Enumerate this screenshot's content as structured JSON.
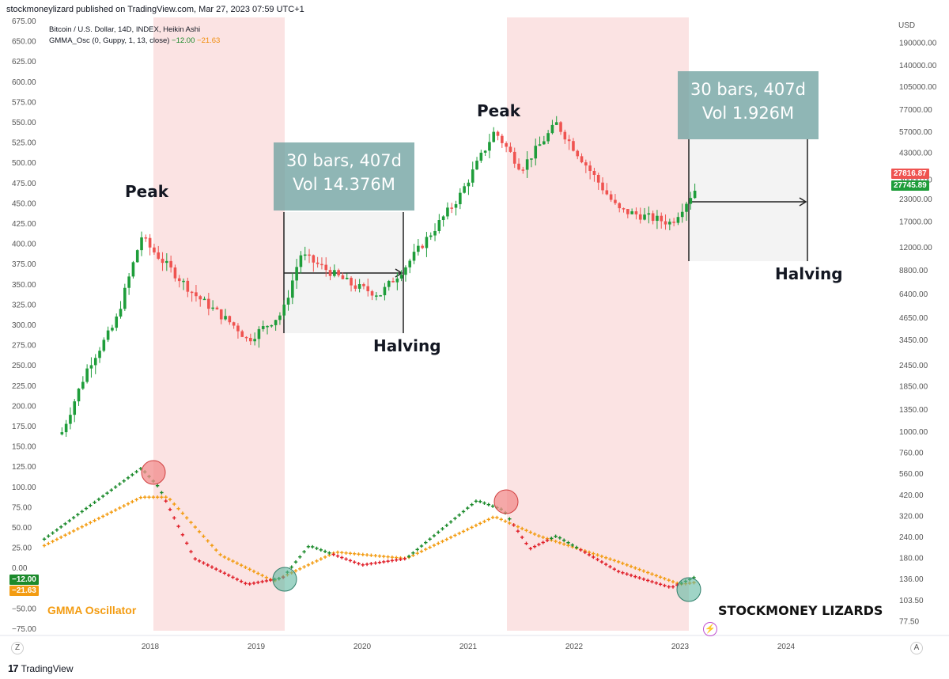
{
  "header": {
    "published": "stockmoneylizard published on TradingView.com, Mar 27, 2023 07:59 UTC+1",
    "symbol_line": "Bitcoin / U.S. Dollar, 14D, INDEX, Heikin Ashi",
    "indicator_name": "GMMA_Osc (0, Guppy, 1, 13, close)",
    "indicator_val1": "−12.00",
    "indicator_val2": "−21.63"
  },
  "annotations": {
    "peak1": "Peak",
    "peak2": "Peak",
    "halving1": "Halving",
    "halving2": "Halving",
    "measure1_line1": "30 bars, 407d",
    "measure1_line2": "Vol 14.376M",
    "measure2_line1": "30 bars, 407d",
    "measure2_line2": "Vol 1.926M",
    "oscillator_title": "GMMA Oscillator",
    "brand": "STOCKMONEY LIZARDS"
  },
  "price_tags": {
    "red": "27816.87",
    "green": "27745.89",
    "osc_green": "−12.00",
    "osc_orange": "−21.63"
  },
  "corner_labels": {
    "currency": "USD",
    "bottom_left": "Z",
    "bottom_right": "A"
  },
  "footer": {
    "brand": "TradingView"
  },
  "colors": {
    "up": "#26a69a",
    "up_dark": "#1e9d3a",
    "down": "#ef5350",
    "osc_green": "#1b8a2b",
    "osc_red": "#e0202a",
    "osc_orange": "#f39c12",
    "shade_red": "#fbe3e3",
    "shade_gray": "#f2f2f2",
    "circle_red": "#f28b8b",
    "circle_teal": "#5fb8a0"
  },
  "chart_data": [
    {
      "type": "candlestick",
      "title": "Bitcoin / U.S. Dollar, 14D, INDEX, Heikin Ashi",
      "x_ticks": [
        "2018",
        "2019",
        "2020",
        "2021",
        "2022",
        "2023",
        "2024"
      ],
      "y_right_label": "USD",
      "y_right_ticks": [
        "190000.00",
        "140000.00",
        "105000.00",
        "77000.00",
        "57000.00",
        "43000.00",
        "30000.00",
        "23000.00",
        "17000.00",
        "12000.00",
        "8800.00",
        "6400.00",
        "4650.00",
        "3450.00",
        "2450.00",
        "1850.00",
        "1350.00",
        "1000.00",
        "760.00",
        "560.00",
        "420.00",
        "320.00",
        "240.00",
        "180.00",
        "136.00",
        "103.50",
        "77.50"
      ],
      "y_left_ticks": [
        "675.00",
        "650.00",
        "625.00",
        "600.00",
        "575.00",
        "550.00",
        "525.00",
        "500.00",
        "475.00",
        "450.00",
        "425.00",
        "400.00",
        "375.00",
        "350.00",
        "325.00",
        "300.00",
        "275.00",
        "250.00",
        "225.00",
        "200.00",
        "175.00",
        "150.00",
        "125.00",
        "100.00",
        "75.00",
        "50.00",
        "25.00",
        "0.00",
        "−25.00",
        "−50.00",
        "−75.00"
      ],
      "log_scale": true,
      "approx_closes": [
        {
          "x": "2017-03",
          "y": 1000
        },
        {
          "x": "2017-06",
          "y": 2450
        },
        {
          "x": "2017-09",
          "y": 4300
        },
        {
          "x": "2017-12",
          "y": 14000
        },
        {
          "x": "2018-01",
          "y": 12000
        },
        {
          "x": "2018-06",
          "y": 6400
        },
        {
          "x": "2018-11",
          "y": 4000
        },
        {
          "x": "2018-12",
          "y": 3450
        },
        {
          "x": "2019-04",
          "y": 5000
        },
        {
          "x": "2019-06",
          "y": 11000
        },
        {
          "x": "2019-12",
          "y": 7200
        },
        {
          "x": "2020-03",
          "y": 6400
        },
        {
          "x": "2020-06",
          "y": 9500
        },
        {
          "x": "2020-12",
          "y": 24000
        },
        {
          "x": "2021-04",
          "y": 58000
        },
        {
          "x": "2021-07",
          "y": 35000
        },
        {
          "x": "2021-11",
          "y": 64000
        },
        {
          "x": "2022-06",
          "y": 20000
        },
        {
          "x": "2022-12",
          "y": 16800
        },
        {
          "x": "2023-03",
          "y": 27745.89
        }
      ]
    },
    {
      "type": "line",
      "title": "GMMA_Osc (0, Guppy, 1, 13, close)",
      "series": [
        {
          "name": "",
          "approx_values": [
            {
              "x": "2017-01",
              "y": 45
            },
            {
              "x": "2017-12",
              "y": 155
            },
            {
              "x": "2018-02",
              "y": 125
            },
            {
              "x": "2018-06",
              "y": 15
            },
            {
              "x": "2018-12",
              "y": -25
            },
            {
              "x": "2019-04",
              "y": -15
            },
            {
              "x": "2019-07",
              "y": 35
            },
            {
              "x": "2020-01",
              "y": 5
            },
            {
              "x": "2020-06",
              "y": 15
            },
            {
              "x": "2021-02",
              "y": 105
            },
            {
              "x": "2021-05",
              "y": 90
            },
            {
              "x": "2021-08",
              "y": 30
            },
            {
              "x": "2021-11",
              "y": 50
            },
            {
              "x": "2022-06",
              "y": -5
            },
            {
              "x": "2022-12",
              "y": -30
            },
            {
              "x": "2023-03",
              "y": -12
            }
          ]
        },
        {
          "name": "",
          "approx_values": [
            {
              "x": "2017-01",
              "y": 35
            },
            {
              "x": "2017-12",
              "y": 110
            },
            {
              "x": "2018-03",
              "y": 110
            },
            {
              "x": "2018-09",
              "y": 20
            },
            {
              "x": "2019-03",
              "y": -20
            },
            {
              "x": "2019-10",
              "y": 25
            },
            {
              "x": "2020-06",
              "y": 15
            },
            {
              "x": "2021-04",
              "y": 80
            },
            {
              "x": "2021-09",
              "y": 50
            },
            {
              "x": "2022-06",
              "y": 10
            },
            {
              "x": "2023-01",
              "y": -25
            },
            {
              "x": "2023-03",
              "y": -21.63
            }
          ]
        }
      ]
    }
  ]
}
